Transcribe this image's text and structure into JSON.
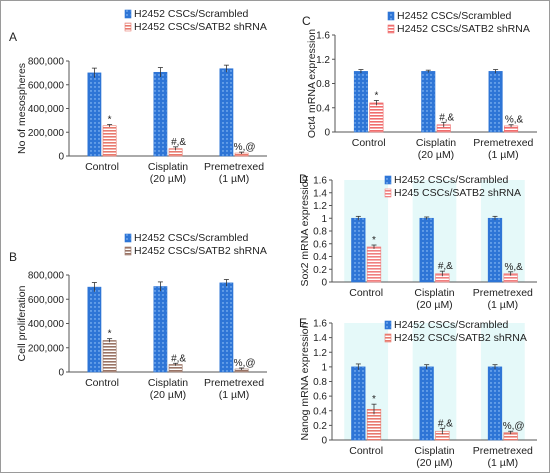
{
  "colors": {
    "scrambled": "#2e75d6",
    "shrna_a": "#e87a6e",
    "shrna_b": "#9a7466",
    "shrna_c": "#f06e6e",
    "shrna_d": "#f08080",
    "axis": "#555555",
    "band": "#dff7f7"
  },
  "chart_data": [
    {
      "panel": "A",
      "type": "bar",
      "ylabel": "No of mesospheres",
      "ylim": [
        0,
        800000
      ],
      "yticks": [
        "0",
        "200,000",
        "400,000",
        "600,000",
        "800,000"
      ],
      "categories": [
        [
          "Control"
        ],
        [
          "Cisplatin",
          "(20 µM)"
        ],
        [
          "Premetrexed",
          "(1 µM)"
        ]
      ],
      "series": [
        {
          "name": "H2452 CSCs/Scrambled",
          "values": [
            700000,
            705000,
            735000
          ],
          "errors": [
            40000,
            40000,
            30000
          ]
        },
        {
          "name": "H2452 CSCs/SATB2 shRNA",
          "values": [
            255000,
            62000,
            25000
          ],
          "errors": [
            10000,
            15000,
            8000
          ]
        }
      ],
      "annotations": [
        "*",
        "#,&",
        "%,@"
      ]
    },
    {
      "panel": "B",
      "type": "bar",
      "ylabel": "Cell proliferation",
      "ylim": [
        0,
        800000
      ],
      "yticks": [
        "0",
        "200,000",
        "400,000",
        "600,000",
        "800,000"
      ],
      "categories": [
        [
          "Control"
        ],
        [
          "Cisplatin",
          "(20 µM)"
        ],
        [
          "Premetrexed",
          "(1 µM)"
        ]
      ],
      "series": [
        {
          "name": "H2452 CSCs/Scrambled",
          "values": [
            700000,
            705000,
            735000
          ],
          "errors": [
            38000,
            38000,
            28000
          ]
        },
        {
          "name": "H2452 CSCs/SATB2 shRNA",
          "values": [
            260000,
            62000,
            25000
          ],
          "errors": [
            15000,
            10000,
            8000
          ]
        }
      ],
      "annotations": [
        "*",
        "#,&",
        "%,@"
      ]
    },
    {
      "panel": "C",
      "type": "bar",
      "ylabel": "Oct4 mRNA  expression",
      "ylim": [
        0,
        1.6
      ],
      "yticks": [
        "0",
        "0.4",
        "0.8",
        "1.2",
        "1.6"
      ],
      "categories": [
        [
          "Control"
        ],
        [
          "Cisplatin",
          "(20 µM)"
        ],
        [
          "Premetrexed",
          "(1 µM)"
        ]
      ],
      "series": [
        {
          "name": "H2452 CSCs/Scrambled",
          "values": [
            1.0,
            1.0,
            1.0
          ],
          "errors": [
            0.03,
            0.02,
            0.03
          ]
        },
        {
          "name": "H2452 CSCs/SATB2 shRNA",
          "values": [
            0.48,
            0.12,
            0.1
          ],
          "errors": [
            0.04,
            0.04,
            0.02
          ]
        }
      ],
      "annotations": [
        "*",
        "#,&",
        "%,&"
      ]
    },
    {
      "panel": "D",
      "type": "bar",
      "ylabel": "Sox2 mRNA  expression",
      "ylim": [
        0,
        1.6
      ],
      "yticks": [
        "0",
        "0.2",
        "0.4",
        "0.6",
        "0.8",
        "1",
        "1.2",
        "1.4",
        "1.6"
      ],
      "categories": [
        [
          "Control"
        ],
        [
          "Cisplatin",
          "(20 µM)"
        ],
        [
          "Premetrexed",
          "(1 µM)"
        ]
      ],
      "series": [
        {
          "name": "H2452 CSCs/Scrambled",
          "values": [
            1.0,
            1.0,
            1.0
          ],
          "errors": [
            0.03,
            0.02,
            0.03
          ]
        },
        {
          "name": "H245 CSCs/SATB2 shRNA",
          "values": [
            0.55,
            0.13,
            0.13
          ],
          "errors": [
            0.03,
            0.04,
            0.03
          ]
        }
      ],
      "annotations": [
        "*",
        "#,&",
        "%,&"
      ]
    },
    {
      "panel": "E",
      "type": "bar",
      "ylabel": "Nanog mRNA expression",
      "ylim": [
        0,
        1.6
      ],
      "yticks": [
        "0",
        "0.2",
        "0.4",
        "0.6",
        "0.8",
        "1",
        "1.2",
        "1.4",
        "1.6"
      ],
      "categories": [
        [
          "Control"
        ],
        [
          "Cisplatin",
          "(20 µM)"
        ],
        [
          "Premetrexed",
          "(1 µM)"
        ]
      ],
      "series": [
        {
          "name": "H2452 CSCs/Scrambled",
          "values": [
            1.0,
            1.0,
            1.0
          ],
          "errors": [
            0.04,
            0.03,
            0.03
          ]
        },
        {
          "name": "H2452 CSCs/SATB2 shRNA",
          "values": [
            0.42,
            0.12,
            0.1
          ],
          "errors": [
            0.07,
            0.04,
            0.02
          ]
        }
      ],
      "annotations": [
        "*",
        "#,&",
        "%,@"
      ]
    }
  ]
}
